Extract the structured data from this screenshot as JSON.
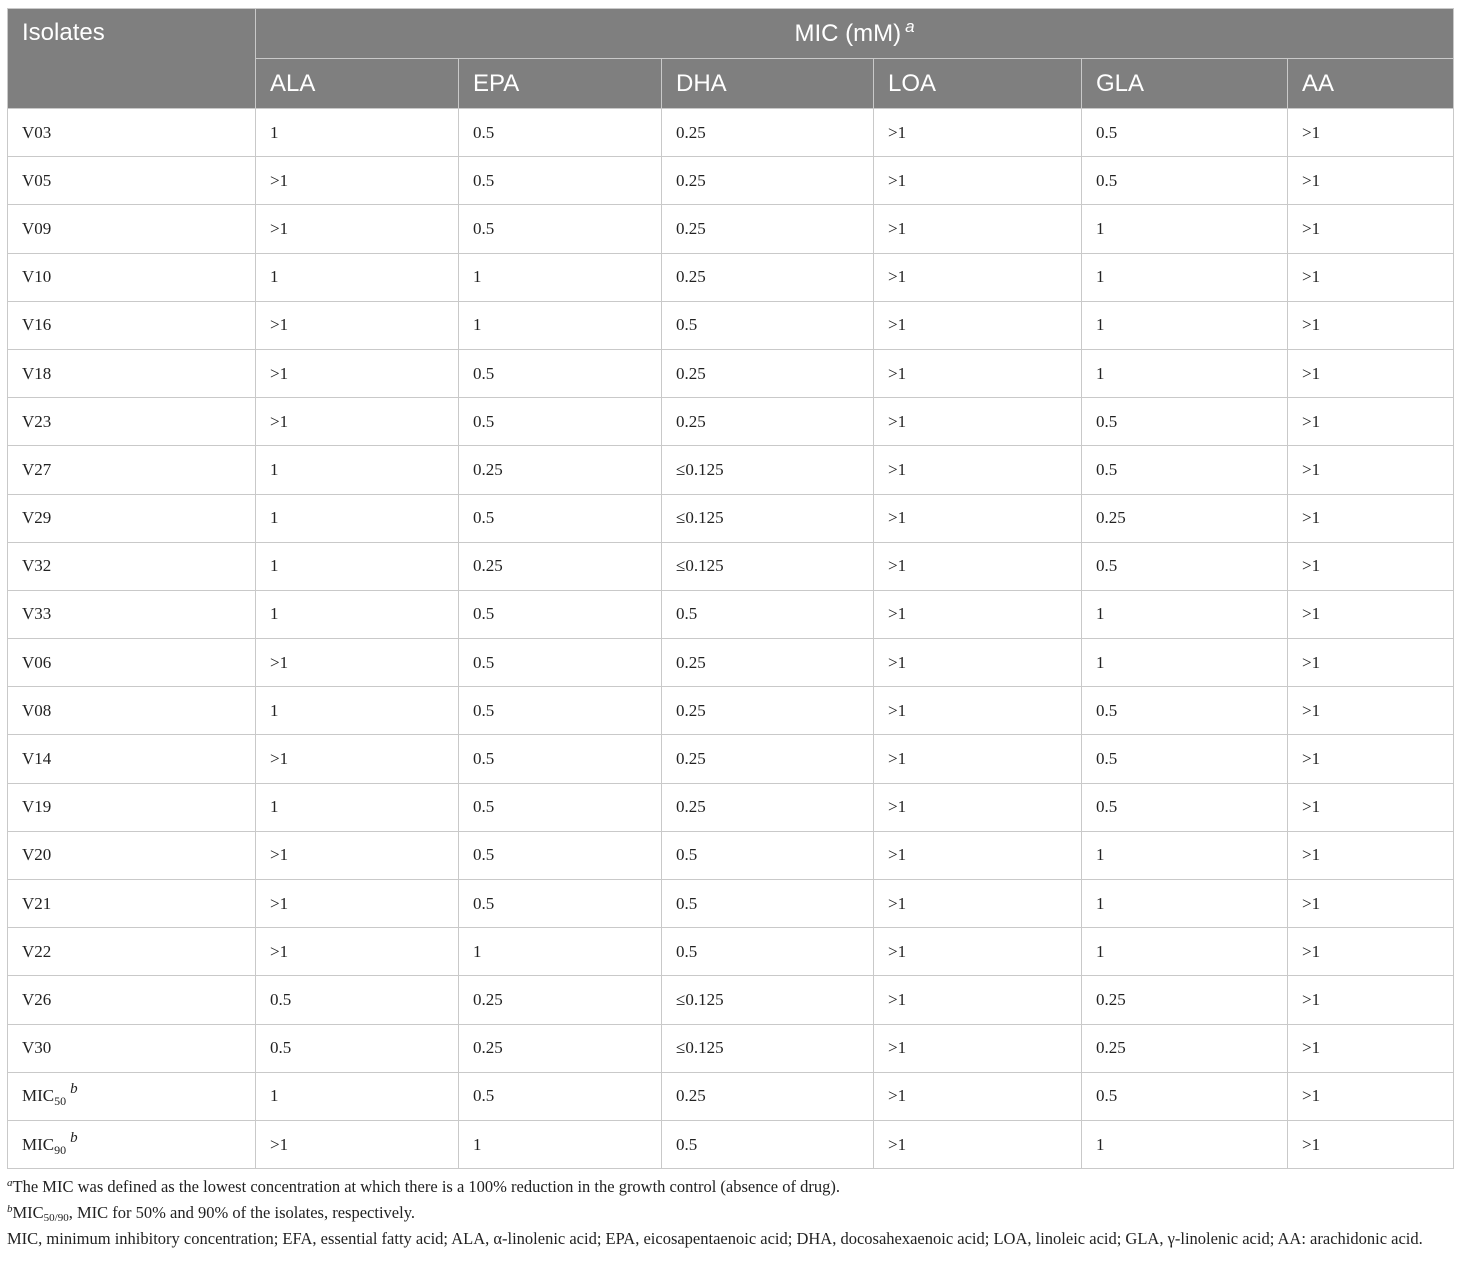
{
  "table": {
    "header": {
      "isolates": "Isolates",
      "group_label": "MIC (mM)",
      "group_note": "a",
      "columns": [
        "ALA",
        "EPA",
        "DHA",
        "LOA",
        "GLA",
        "AA"
      ]
    },
    "rows": [
      {
        "isolate": "V03",
        "values": [
          "1",
          "0.5",
          "0.25",
          ">1",
          "0.5",
          ">1"
        ]
      },
      {
        "isolate": "V05",
        "values": [
          ">1",
          "0.5",
          "0.25",
          ">1",
          "0.5",
          ">1"
        ]
      },
      {
        "isolate": "V09",
        "values": [
          ">1",
          "0.5",
          "0.25",
          ">1",
          "1",
          ">1"
        ]
      },
      {
        "isolate": "V10",
        "values": [
          "1",
          "1",
          "0.25",
          ">1",
          "1",
          ">1"
        ]
      },
      {
        "isolate": "V16",
        "values": [
          ">1",
          "1",
          "0.5",
          ">1",
          "1",
          ">1"
        ]
      },
      {
        "isolate": "V18",
        "values": [
          ">1",
          "0.5",
          "0.25",
          ">1",
          "1",
          ">1"
        ]
      },
      {
        "isolate": "V23",
        "values": [
          ">1",
          "0.5",
          "0.25",
          ">1",
          "0.5",
          ">1"
        ]
      },
      {
        "isolate": "V27",
        "values": [
          "1",
          "0.25",
          "≤0.125",
          ">1",
          "0.5",
          ">1"
        ]
      },
      {
        "isolate": "V29",
        "values": [
          "1",
          "0.5",
          "≤0.125",
          ">1",
          "0.25",
          ">1"
        ]
      },
      {
        "isolate": "V32",
        "values": [
          "1",
          "0.25",
          "≤0.125",
          ">1",
          "0.5",
          ">1"
        ]
      },
      {
        "isolate": "V33",
        "values": [
          "1",
          "0.5",
          "0.5",
          ">1",
          "1",
          ">1"
        ]
      },
      {
        "isolate": "V06",
        "values": [
          ">1",
          "0.5",
          "0.25",
          ">1",
          "1",
          ">1"
        ]
      },
      {
        "isolate": "V08",
        "values": [
          "1",
          "0.5",
          "0.25",
          ">1",
          "0.5",
          ">1"
        ]
      },
      {
        "isolate": "V14",
        "values": [
          ">1",
          "0.5",
          "0.25",
          ">1",
          "0.5",
          ">1"
        ]
      },
      {
        "isolate": "V19",
        "values": [
          "1",
          "0.5",
          "0.25",
          ">1",
          "0.5",
          ">1"
        ]
      },
      {
        "isolate": "V20",
        "values": [
          ">1",
          "0.5",
          "0.5",
          ">1",
          "1",
          ">1"
        ]
      },
      {
        "isolate": "V21",
        "values": [
          ">1",
          "0.5",
          "0.5",
          ">1",
          "1",
          ">1"
        ]
      },
      {
        "isolate": "V22",
        "values": [
          ">1",
          "1",
          "0.5",
          ">1",
          "1",
          ">1"
        ]
      },
      {
        "isolate": "V26",
        "values": [
          "0.5",
          "0.25",
          "≤0.125",
          ">1",
          "0.25",
          ">1"
        ]
      },
      {
        "isolate": "V30",
        "values": [
          "0.5",
          "0.25",
          "≤0.125",
          ">1",
          "0.25",
          ">1"
        ]
      }
    ],
    "summary_rows": [
      {
        "label": "MIC",
        "subscript": "50",
        "note": "b",
        "values": [
          "1",
          "0.5",
          "0.25",
          ">1",
          "0.5",
          ">1"
        ]
      },
      {
        "label": "MIC",
        "subscript": "90",
        "note": "b",
        "values": [
          ">1",
          "1",
          "0.5",
          ">1",
          "1",
          ">1"
        ]
      }
    ]
  },
  "footnotes": {
    "a_mark": "a",
    "a_text": "The MIC was defined as the lowest concentration at which there is a 100% reduction in the growth control (absence of drug).",
    "b_mark": "b",
    "b_label": "MIC",
    "b_sub": "50/90",
    "b_text": ", MIC for 50% and 90% of the isolates, respectively.",
    "abbreviations": "MIC, minimum inhibitory concentration; EFA, essential fatty acid; ALA, α-linolenic acid; EPA, eicosapentaenoic acid; DHA, docosahexaenoic acid; LOA, linoleic acid; GLA, γ-linolenic acid; AA: arachidonic acid."
  }
}
